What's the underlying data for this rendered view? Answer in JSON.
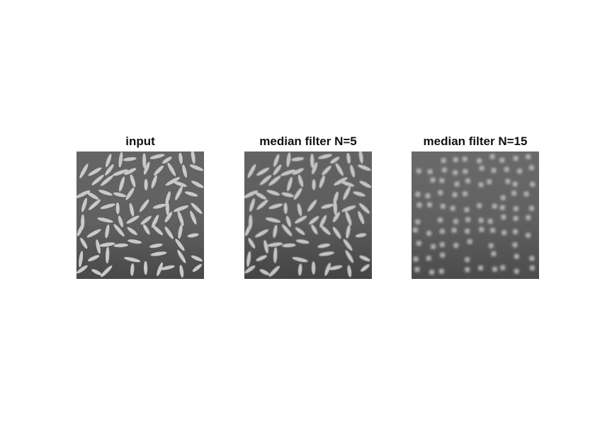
{
  "figure": {
    "panels": [
      {
        "title": "input"
      },
      {
        "title": "median filter N=5"
      },
      {
        "title": "median filter N=15"
      }
    ]
  },
  "colors": {
    "background": "#595959",
    "grain": "#c9c9c9",
    "figure_bg": "#ffffff",
    "title": "#111111"
  }
}
